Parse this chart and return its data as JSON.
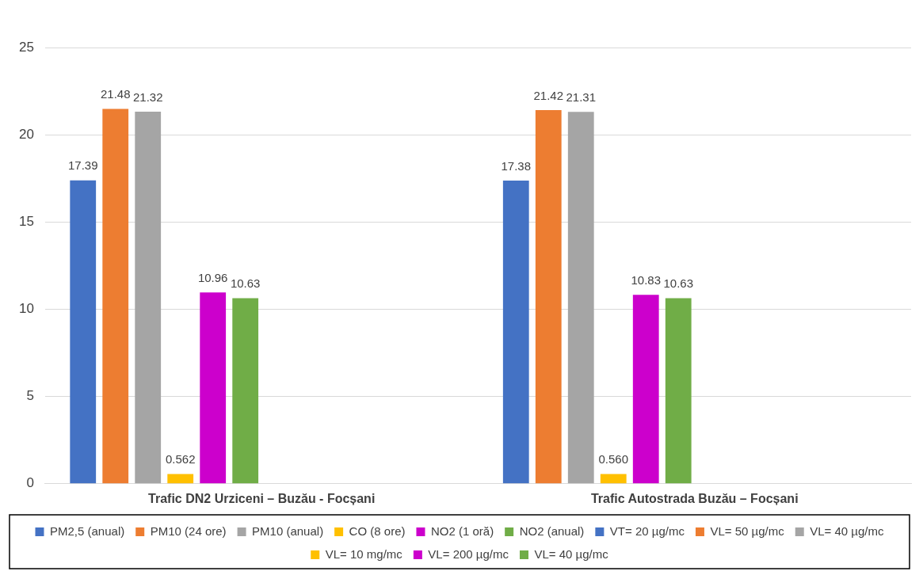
{
  "chart_data": {
    "type": "bar",
    "categories": [
      "Trafic DN2 Urziceni – Buzău - Focșani",
      "Trafic Autostrada Buzău – Focșani"
    ],
    "series": [
      {
        "name": "PM2,5 (anual)",
        "color": "#4472c4",
        "values": [
          17.39,
          17.38
        ],
        "value_labels": [
          "17.39",
          "17.38"
        ]
      },
      {
        "name": "PM10 (24 ore)",
        "color": "#ed7d31",
        "values": [
          21.48,
          21.42
        ],
        "value_labels": [
          "21.48",
          "21.42"
        ]
      },
      {
        "name": "PM10 (anual)",
        "color": "#a5a5a5",
        "values": [
          21.32,
          21.31
        ],
        "value_labels": [
          "21.32",
          "21.31"
        ]
      },
      {
        "name": "CO (8 ore)",
        "color": "#ffc000",
        "values": [
          0.562,
          0.56
        ],
        "value_labels": [
          "0.562",
          "0.560"
        ]
      },
      {
        "name": "NO2 (1 oră)",
        "color": "#cc00cc",
        "values": [
          10.96,
          10.83
        ],
        "value_labels": [
          "10.96",
          "10.83"
        ]
      },
      {
        "name": "NO2 (anual)",
        "color": "#70ad47",
        "values": [
          10.63,
          10.63
        ],
        "value_labels": [
          "10.63",
          "10.63"
        ]
      },
      {
        "name": "VT= 20 µg/mc",
        "color": "#4472c4",
        "values": [
          null,
          null
        ]
      },
      {
        "name": "VL= 50 µg/mc",
        "color": "#ed7d31",
        "values": [
          null,
          null
        ]
      },
      {
        "name": "VL= 40 µg/mc",
        "color": "#a5a5a5",
        "values": [
          null,
          null
        ]
      },
      {
        "name": "VL= 10 mg/mc",
        "color": "#ffc000",
        "values": [
          null,
          null
        ]
      },
      {
        "name": "VL= 200 µg/mc",
        "color": "#cc00cc",
        "values": [
          null,
          null
        ]
      },
      {
        "name": "VL= 40 µg/mc",
        "color": "#70ad47",
        "values": [
          null,
          null
        ]
      }
    ],
    "ylim": [
      0,
      25
    ],
    "yticks": [
      0,
      5,
      10,
      15,
      20,
      25
    ],
    "grid": "y",
    "legend": "bottom"
  }
}
